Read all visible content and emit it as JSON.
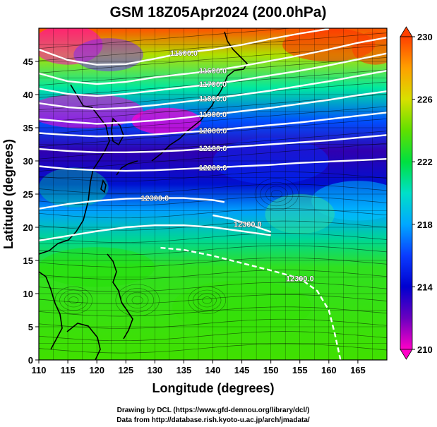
{
  "title": "GSM 18Z05Apr2024 (200.0hPa)",
  "xlabel": "Longitude (degrees)",
  "ylabel": "Latitude  (degrees)",
  "x_ticks": [
    "110",
    "115",
    "120",
    "125",
    "130",
    "135",
    "140",
    "145",
    "150",
    "155",
    "160",
    "165"
  ],
  "y_ticks": [
    "0",
    "5",
    "10",
    "15",
    "20",
    "25",
    "30",
    "35",
    "40",
    "45"
  ],
  "colorbar_ticks": [
    "210",
    "214",
    "218",
    "222",
    "226",
    "230"
  ],
  "credit_line1": "Drawing by DCL (https://www.gfd-dennou.org/library/dcl/)",
  "credit_line2": "Data from http://database.rish.kyoto-u.ac.jp/arch/jmadata/",
  "colors": {
    "colorbar": [
      "#ff00c8",
      "#6a00c0",
      "#0000d0",
      "#0a3cff",
      "#00a8ff",
      "#00e0c8",
      "#00e040",
      "#60e000",
      "#d8e000",
      "#ffa000",
      "#ff4000"
    ]
  },
  "chart_data": {
    "type": "heatmap",
    "field": "temperature with geopotential height contours and wind streamlines",
    "x_range": [
      110,
      170
    ],
    "y_range": [
      0,
      50
    ],
    "color_range": [
      210,
      230
    ],
    "grid": true,
    "contours": [
      {
        "label": "11600.0",
        "points": [
          [
            110,
            46.8
          ],
          [
            115,
            45.2
          ],
          [
            120,
            44.5
          ],
          [
            125,
            44.6
          ],
          [
            130,
            45.4
          ],
          [
            135,
            46.3
          ],
          [
            140,
            46.8
          ],
          [
            145,
            47.5
          ],
          [
            150,
            48.4
          ],
          [
            155,
            49.2
          ],
          [
            160,
            49.9
          ]
        ]
      },
      {
        "label": "11600.0",
        "points": [
          [
            110,
            43.2
          ],
          [
            115,
            42.0
          ],
          [
            120,
            41.6
          ],
          [
            125,
            41.9
          ],
          [
            130,
            42.6
          ],
          [
            135,
            43.1
          ],
          [
            140,
            43.6
          ],
          [
            145,
            44.3
          ],
          [
            150,
            45.1
          ],
          [
            155,
            45.9
          ],
          [
            160,
            46.8
          ],
          [
            165,
            47.8
          ],
          [
            170,
            48.6
          ]
        ]
      },
      {
        "label": "11700.0",
        "points": [
          [
            110,
            40.9
          ],
          [
            115,
            40.1
          ],
          [
            120,
            39.8
          ],
          [
            125,
            40.1
          ],
          [
            130,
            40.6
          ],
          [
            135,
            41.1
          ],
          [
            140,
            41.6
          ],
          [
            145,
            42.2
          ],
          [
            150,
            42.9
          ],
          [
            155,
            43.6
          ],
          [
            160,
            44.4
          ],
          [
            165,
            45.3
          ],
          [
            170,
            46.2
          ]
        ]
      },
      {
        "label": "11800.0",
        "points": [
          [
            110,
            38.7
          ],
          [
            115,
            38.1
          ],
          [
            120,
            37.8
          ],
          [
            125,
            38.0
          ],
          [
            130,
            38.4
          ],
          [
            135,
            38.9
          ],
          [
            140,
            39.4
          ],
          [
            145,
            40.0
          ],
          [
            150,
            40.6
          ],
          [
            155,
            41.3
          ],
          [
            160,
            42.0
          ],
          [
            165,
            42.8
          ],
          [
            170,
            43.6
          ]
        ]
      },
      {
        "label": "11900.0",
        "points": [
          [
            110,
            36.3
          ],
          [
            115,
            35.9
          ],
          [
            120,
            35.6
          ],
          [
            125,
            35.8
          ],
          [
            130,
            36.1
          ],
          [
            135,
            36.5
          ],
          [
            140,
            37.0
          ],
          [
            145,
            37.5
          ],
          [
            150,
            38.0
          ],
          [
            155,
            38.6
          ],
          [
            160,
            39.2
          ],
          [
            165,
            39.9
          ],
          [
            170,
            40.5
          ]
        ]
      },
      {
        "label": "12000.0",
        "points": [
          [
            110,
            34.2
          ],
          [
            115,
            33.9
          ],
          [
            120,
            33.7
          ],
          [
            125,
            33.8
          ],
          [
            130,
            34.0
          ],
          [
            135,
            34.3
          ],
          [
            140,
            34.6
          ],
          [
            145,
            35.0
          ],
          [
            150,
            35.4
          ],
          [
            155,
            35.8
          ],
          [
            160,
            36.3
          ],
          [
            165,
            36.8
          ],
          [
            170,
            37.3
          ]
        ]
      },
      {
        "label": "12100.0",
        "points": [
          [
            110,
            31.8
          ],
          [
            115,
            31.5
          ],
          [
            120,
            31.3
          ],
          [
            125,
            31.3
          ],
          [
            130,
            31.4
          ],
          [
            135,
            31.6
          ],
          [
            140,
            31.9
          ],
          [
            145,
            32.2
          ],
          [
            150,
            32.5
          ],
          [
            155,
            32.8
          ],
          [
            160,
            33.1
          ],
          [
            165,
            33.5
          ],
          [
            170,
            33.9
          ]
        ]
      },
      {
        "label": "12200.0",
        "points": [
          [
            110,
            29.2
          ],
          [
            115,
            28.8
          ],
          [
            120,
            28.6
          ],
          [
            125,
            28.5
          ],
          [
            130,
            28.6
          ],
          [
            135,
            28.8
          ],
          [
            140,
            29.0
          ],
          [
            145,
            29.2
          ],
          [
            150,
            29.4
          ],
          [
            155,
            29.7
          ],
          [
            160,
            29.9
          ],
          [
            165,
            30.1
          ],
          [
            170,
            30.3
          ]
        ]
      },
      {
        "label": "12300.0",
        "points": [
          [
            110,
            22.8
          ],
          [
            115,
            23.5
          ],
          [
            120,
            24.0
          ],
          [
            125,
            24.3
          ],
          [
            130,
            24.4
          ],
          [
            135,
            24.4
          ],
          [
            140,
            24.1
          ],
          [
            142,
            23.8
          ]
        ]
      },
      {
        "label": "12300.0",
        "points": [
          [
            140,
            21.8
          ],
          [
            143,
            21.3
          ],
          [
            146,
            20.5
          ],
          [
            150,
            19.3
          ]
        ]
      },
      {
        "label": "",
        "points": [
          [
            110,
            18.0
          ],
          [
            115,
            18.7
          ],
          [
            120,
            19.4
          ],
          [
            125,
            20.0
          ],
          [
            130,
            20.3
          ],
          [
            135,
            20.3
          ],
          [
            140,
            20.0
          ],
          [
            145,
            19.4
          ],
          [
            150,
            18.8
          ]
        ]
      },
      {
        "label": "12300.0",
        "points": [
          [
            131,
            16.9
          ],
          [
            135,
            16.6
          ],
          [
            140,
            15.7
          ],
          [
            145,
            14.6
          ],
          [
            150,
            13.5
          ],
          [
            155,
            12.3
          ],
          [
            158,
            10.4
          ],
          [
            160,
            7.5
          ],
          [
            161,
            4.0
          ],
          [
            162,
            0.0
          ]
        ]
      }
    ]
  }
}
